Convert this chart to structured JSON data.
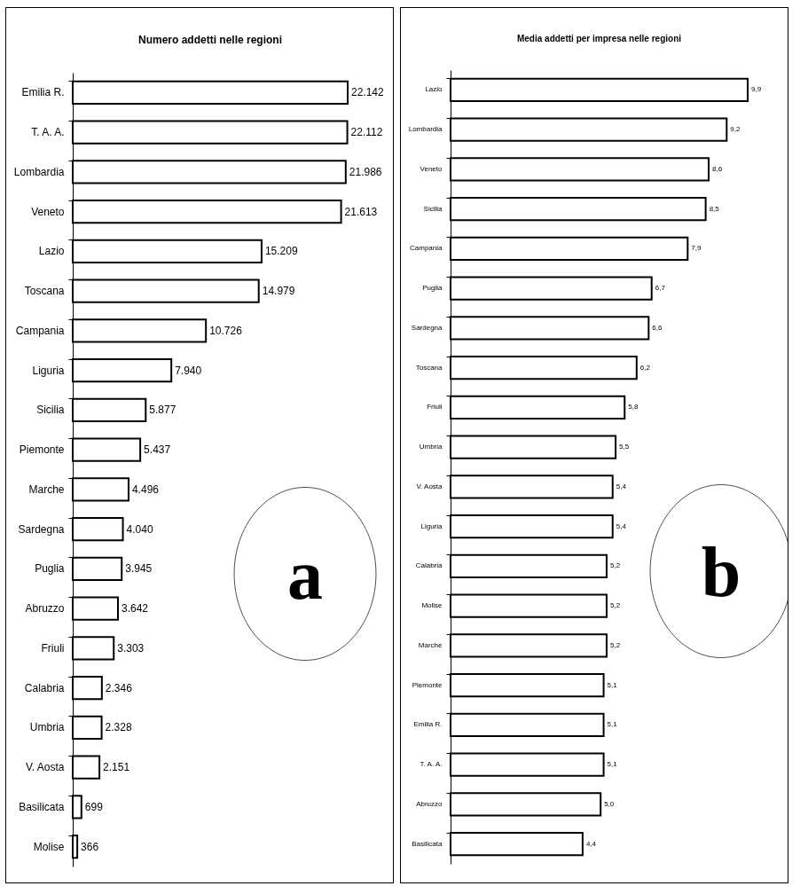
{
  "chart_data": [
    {
      "type": "bar",
      "orientation": "horizontal",
      "title": "Numero addetti nelle regioni",
      "color": "#ffffff",
      "categories": [
        "Emilia R.",
        "T. A. A.",
        "Lombardia",
        "Veneto",
        "Lazio",
        "Toscana",
        "Campania",
        "Liguria",
        "Sicilia",
        "Piemonte",
        "Marche",
        "Sardegna",
        "Puglia",
        "Abruzzo",
        "Friuli",
        "Calabria",
        "Umbria",
        "V. Aosta",
        "Basilicata",
        "Molise"
      ],
      "values": [
        22142,
        22112,
        21986,
        21613,
        15209,
        14979,
        10726,
        7940,
        5877,
        5437,
        4496,
        4040,
        3945,
        3642,
        3303,
        2346,
        2328,
        2151,
        699,
        366
      ],
      "value_labels": [
        "22.142",
        "22.112",
        "21.986",
        "21.613",
        "15.209",
        "14.979",
        "10.726",
        "7.940",
        "5.877",
        "5.437",
        "4.496",
        "4.040",
        "3.945",
        "3.642",
        "3.303",
        "2.346",
        "2.328",
        "2.151",
        "699",
        "366"
      ],
      "annotations": [
        "a"
      ]
    },
    {
      "type": "bar",
      "orientation": "horizontal",
      "title": "Media addetti per impresa nelle regioni",
      "color": "#ffffff",
      "categories": [
        "Lazio",
        "Lombardia",
        "Veneto",
        "Sicilia",
        "Campania",
        "Puglia",
        "Sardegna",
        "Toscana",
        "Friuli",
        "Umbria",
        "V. Aosta",
        "Liguria",
        "Calabria",
        "Molise",
        "Marche",
        "Piemonte",
        "Emilia R.",
        "T. A. A.",
        "Abruzzo",
        "Basilicata"
      ],
      "values": [
        9.9,
        9.2,
        8.6,
        8.5,
        7.9,
        6.7,
        6.6,
        6.2,
        5.8,
        5.5,
        5.4,
        5.4,
        5.2,
        5.2,
        5.2,
        5.1,
        5.1,
        5.1,
        5.0,
        4.4
      ],
      "value_labels": [
        "9,9",
        "9,2",
        "8,6",
        "8,5",
        "7,9",
        "6,7",
        "6,6",
        "6,2",
        "5,8",
        "5,5",
        "5,4",
        "5,4",
        "5,2",
        "5,2",
        "5,2",
        "5,1",
        "5,1",
        "5,1",
        "5,0",
        "4,4"
      ],
      "annotations": [
        "b"
      ]
    }
  ]
}
